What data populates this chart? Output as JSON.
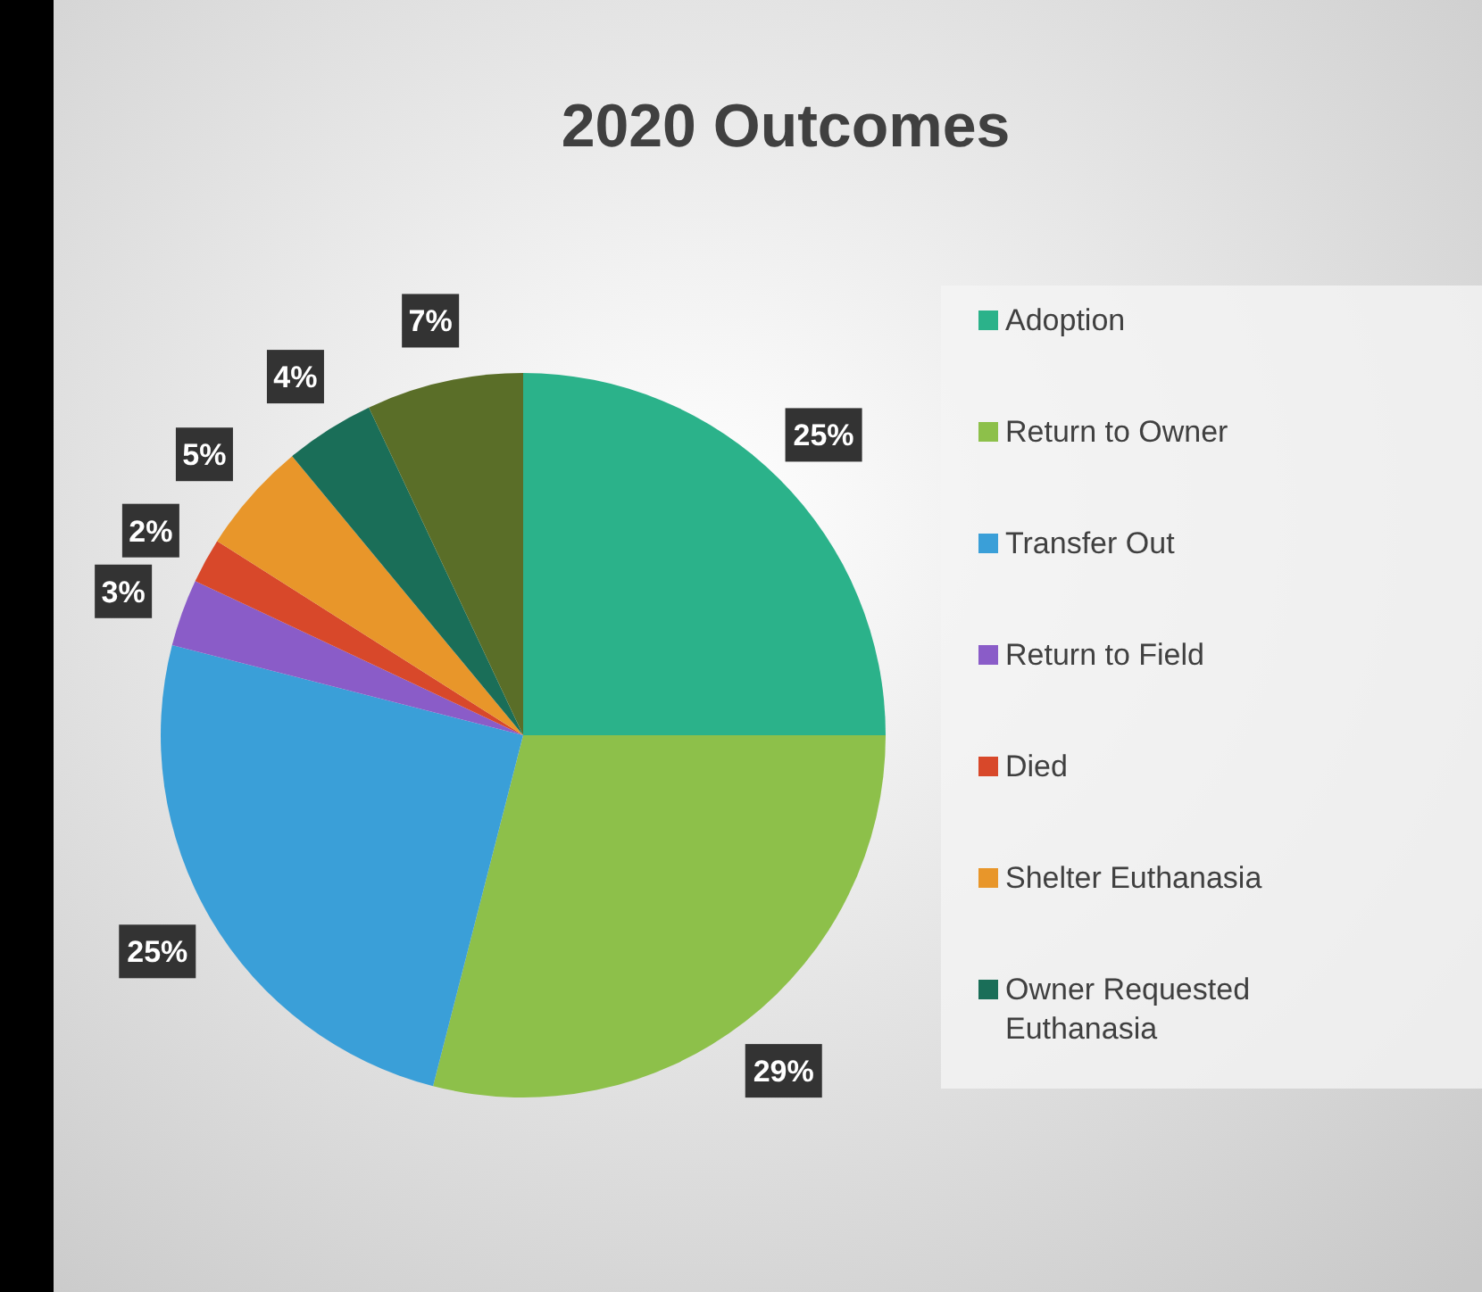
{
  "chart_data": {
    "type": "pie",
    "title": "2020 Outcomes",
    "categories": [
      "Adoption",
      "Return to Owner",
      "Transfer Out",
      "Return to Field",
      "Died",
      "Shelter Euthanasia",
      "Owner Requested Euthanasia",
      null
    ],
    "values": [
      25,
      29,
      25,
      3,
      2,
      5,
      4,
      7
    ],
    "value_labels": [
      "25%",
      "29%",
      "25%",
      "3%",
      "2%",
      "5%",
      "4%",
      "7%"
    ],
    "colors": [
      "#2bb28a",
      "#8dc04a",
      "#3a9fd8",
      "#8a5cc8",
      "#d8482a",
      "#e8962a",
      "#1a6e58",
      "#5a6e28"
    ],
    "legend": "right"
  }
}
